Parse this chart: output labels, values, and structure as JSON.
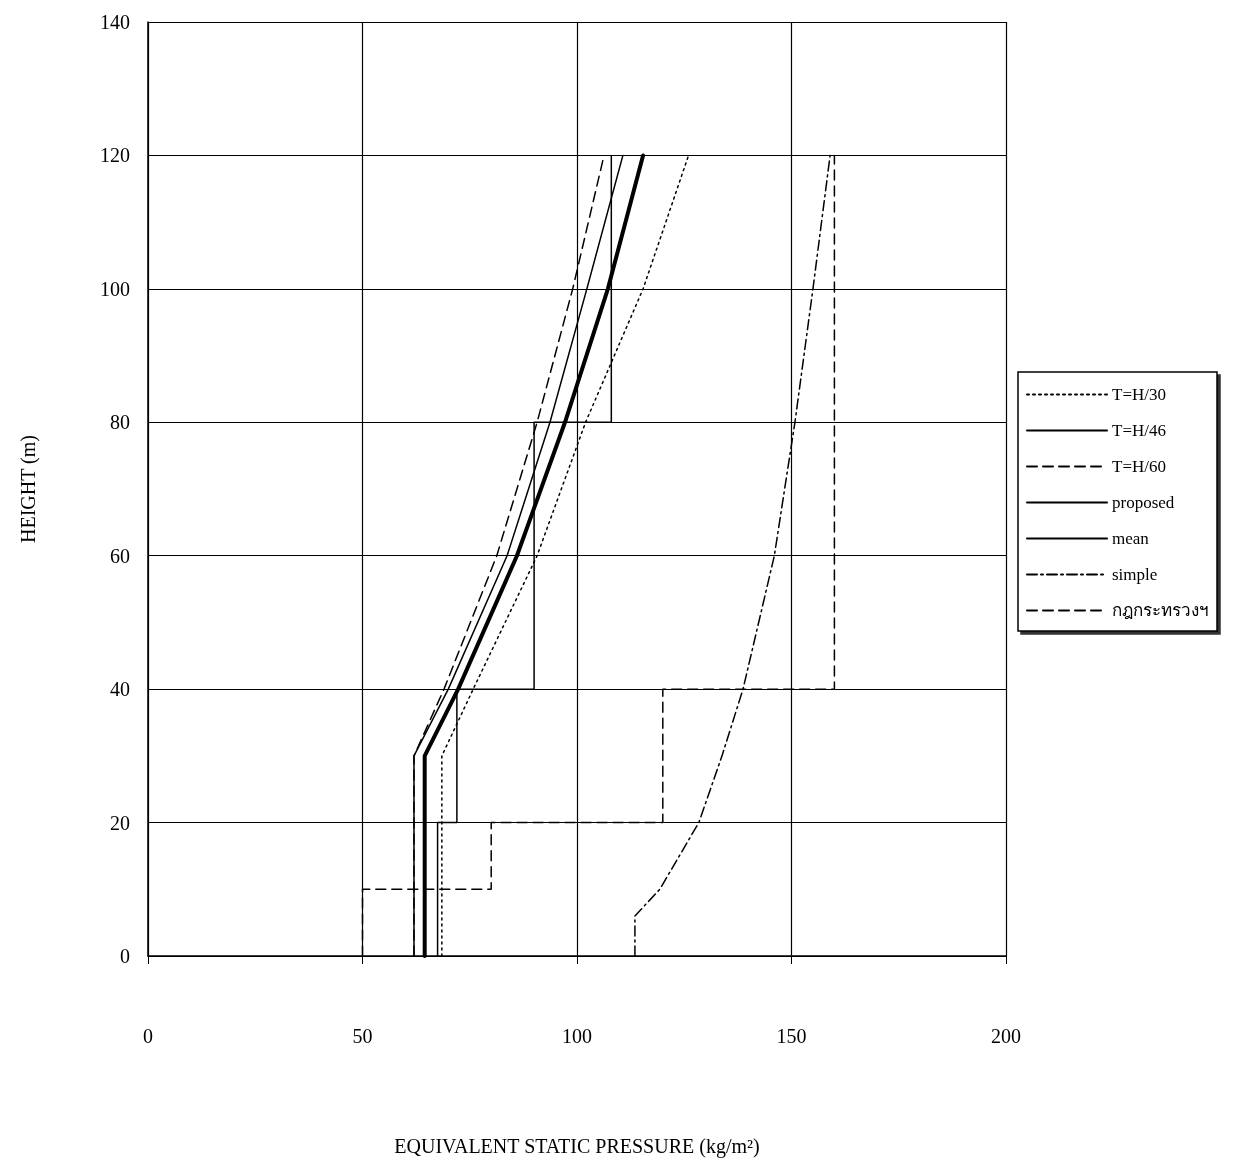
{
  "chart_data": {
    "type": "line",
    "xlabel": "EQUIVALENT STATIC PRESSURE (kg/m²)",
    "ylabel": "HEIGHT (m)",
    "xlim": [
      0,
      200
    ],
    "xticks": [
      0,
      50,
      100,
      150,
      200
    ],
    "ylim": [
      0,
      140
    ],
    "yticks": [
      0,
      20,
      40,
      60,
      80,
      100,
      120,
      140
    ],
    "grid": true,
    "legend": "right",
    "marker": "none",
    "series": [
      {
        "name": "T=H/30",
        "color": "#000000",
        "line_style": "dotted",
        "x": [
          68.5,
          68.5,
          75.8,
          90.7,
          102,
          115.4,
          126
        ],
        "values": [
          0,
          30,
          40,
          60,
          80,
          100,
          120
        ]
      },
      {
        "name": "T=H/46",
        "color": "#000000",
        "line_style": "solid",
        "x": [
          62,
          62,
          70,
          83.7,
          93.7,
          102.3,
          110.7
        ],
        "values": [
          0,
          30,
          40,
          60,
          80,
          100,
          120
        ]
      },
      {
        "name": "T=H/60",
        "color": "#000000",
        "line_style": "dashed",
        "x": [
          62,
          62,
          69,
          81.3,
          90.7,
          99,
          106.3
        ],
        "values": [
          0,
          30,
          40,
          60,
          80,
          100,
          120
        ]
      },
      {
        "name": "proposed",
        "color": "#000000",
        "line_style": "solid",
        "x": [
          67.5,
          67.5,
          72,
          72,
          90,
          90,
          108,
          108
        ],
        "values": [
          0,
          20,
          20,
          40,
          40,
          80,
          80,
          120
        ]
      },
      {
        "name": "mean",
        "color": "#000000",
        "line_style": "solid",
        "x": [
          64.5,
          64.5,
          72.3,
          86,
          97.2,
          107.2,
          115.4
        ],
        "values": [
          0,
          30,
          40,
          60,
          80,
          100,
          120
        ]
      },
      {
        "name": "simple",
        "color": "#000000",
        "line_style": "dashdot",
        "x": [
          113.5,
          113.5,
          119.3,
          128.4,
          133.8,
          138.7,
          146,
          150.8,
          155,
          159
        ],
        "values": [
          0,
          6,
          10,
          20,
          30,
          40,
          60,
          80,
          100,
          120
        ]
      },
      {
        "name": "กฎกระทรวงฯ",
        "color": "#000000",
        "line_style": "dashed",
        "x": [
          50,
          50,
          80,
          80,
          120,
          120,
          160,
          160
        ],
        "values": [
          0,
          10,
          10,
          20,
          20,
          40,
          40,
          120
        ]
      }
    ]
  }
}
